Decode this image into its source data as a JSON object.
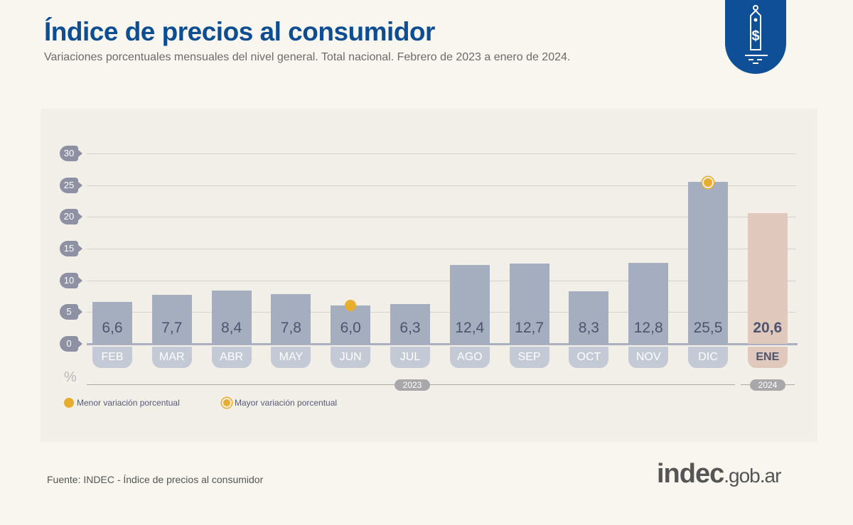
{
  "header": {
    "title": "Índice de precios al consumidor",
    "subtitle": "Variaciones porcentuales mensuales del nivel general. Total nacional. Febrero de 2023 a enero de 2024.",
    "icon": "price-tag-dollar-icon",
    "badge_color": "#0e4f97"
  },
  "chart_data": {
    "type": "bar",
    "categories": [
      "FEB",
      "MAR",
      "ABR",
      "MAY",
      "JUN",
      "JUL",
      "AGO",
      "SEP",
      "OCT",
      "NOV",
      "DIC",
      "ENE"
    ],
    "values": [
      6.6,
      7.7,
      8.4,
      7.8,
      6.0,
      6.3,
      12.4,
      12.7,
      8.3,
      12.8,
      25.5,
      20.6
    ],
    "labels": [
      "6,6",
      "7,7",
      "8,4",
      "7,8",
      "6,0",
      "6,3",
      "12,4",
      "12,7",
      "8,3",
      "12,8",
      "25,5",
      "20,6"
    ],
    "years": [
      {
        "label": "2023",
        "span": [
          "FEB",
          "DIC"
        ]
      },
      {
        "label": "2024",
        "span": [
          "ENE"
        ]
      }
    ],
    "ylabel": "%",
    "ylim": [
      0,
      30
    ],
    "yticks": [
      0,
      5,
      10,
      15,
      20,
      25,
      30
    ],
    "grid": true,
    "colors": {
      "2023": "#a4aebe",
      "2024": "#e1c8bc",
      "marker": "#e8ad2c"
    },
    "min_marker": "JUN",
    "max_marker": "DIC",
    "legend": {
      "min": "Menor variación porcentual",
      "max": "Mayor variación porcentual",
      "placement": "bottom-left"
    }
  },
  "footer": {
    "source": "Fuente: INDEC - Índice de precios al consumidor",
    "logo": "indec.gob.ar"
  }
}
